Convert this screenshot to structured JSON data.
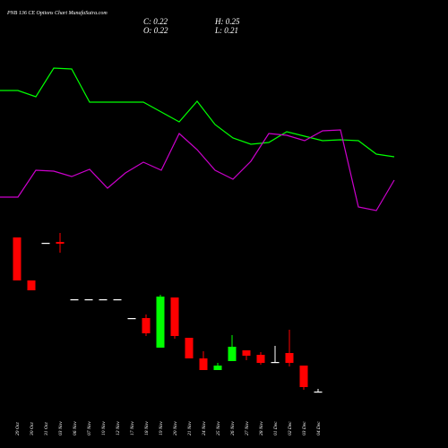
{
  "chart_data": {
    "type": "candlestick",
    "title": "PNB 136  CE Options Chart MunafaSutra.com",
    "ohlc_labels": {
      "close": "C: 0.22",
      "open": "O: 0.22",
      "high": "H: 0.25",
      "low": "L: 0.21"
    },
    "categories": [
      "29 Oct",
      "30 Oct",
      "31 Oct",
      "03 Nov",
      "06 Nov",
      "07 Nov",
      "10 Nov",
      "12 Nov",
      "17 Nov",
      "18 Nov",
      "19 Nov",
      "20 Nov",
      "21 Nov",
      "24 Nov",
      "25 Nov",
      "26 Nov",
      "27 Nov",
      "28 Nov",
      "01 Dec",
      "02 Dec",
      "03 Dec",
      "04 Dec"
    ],
    "open": [
      1.94,
      1.46,
      1.88,
      1.89,
      1.25,
      1.25,
      1.25,
      1.25,
      1.04,
      1.04,
      0.71,
      1.27,
      0.82,
      0.59,
      0.46,
      0.56,
      0.68,
      0.63,
      0.55,
      0.65,
      0.51,
      0.22
    ],
    "high": [
      1.94,
      1.46,
      1.88,
      1.99,
      1.25,
      1.25,
      1.25,
      1.25,
      1.04,
      1.08,
      1.3,
      1.27,
      0.82,
      0.67,
      0.54,
      0.85,
      0.68,
      0.66,
      0.73,
      0.91,
      0.51,
      0.25
    ],
    "low": [
      1.46,
      1.35,
      1.88,
      1.77,
      1.25,
      1.25,
      1.25,
      1.25,
      1.04,
      0.84,
      0.71,
      0.81,
      0.59,
      0.46,
      0.46,
      0.56,
      0.57,
      0.52,
      0.54,
      0.5,
      0.24,
      0.21
    ],
    "close": [
      1.46,
      1.35,
      1.88,
      1.87,
      1.25,
      1.25,
      1.25,
      1.25,
      1.04,
      0.87,
      1.28,
      0.84,
      0.59,
      0.46,
      0.51,
      0.72,
      0.62,
      0.54,
      0.55,
      0.54,
      0.27,
      0.22
    ],
    "ylim": [
      0.12,
      2.12
    ],
    "colors": {
      "up": "#00ff00",
      "down": "#ff0000",
      "flat": "#ffffff"
    },
    "lines": {
      "x": [
        0,
        1,
        2,
        3,
        4,
        5,
        6,
        7,
        8,
        9,
        10,
        11,
        12,
        13,
        14,
        15,
        16,
        17,
        18,
        19,
        20,
        21,
        22
      ],
      "y2lim": [
        0,
        250
      ],
      "series": [
        {
          "color": "#00ff00",
          "values": [
            149,
            149,
            142,
            174,
            173,
            136,
            136,
            136,
            136,
            125,
            114,
            137,
            111,
            96,
            89,
            91,
            103,
            98,
            93,
            94,
            93,
            78,
            75
          ]
        },
        {
          "color": "#cc00cc",
          "values": [
            30,
            30,
            60,
            59,
            53,
            61,
            40,
            57,
            69,
            60,
            101,
            83,
            60,
            50,
            70,
            101,
            99,
            93,
            104,
            105,
            19,
            15,
            49
          ]
        }
      ]
    }
  }
}
